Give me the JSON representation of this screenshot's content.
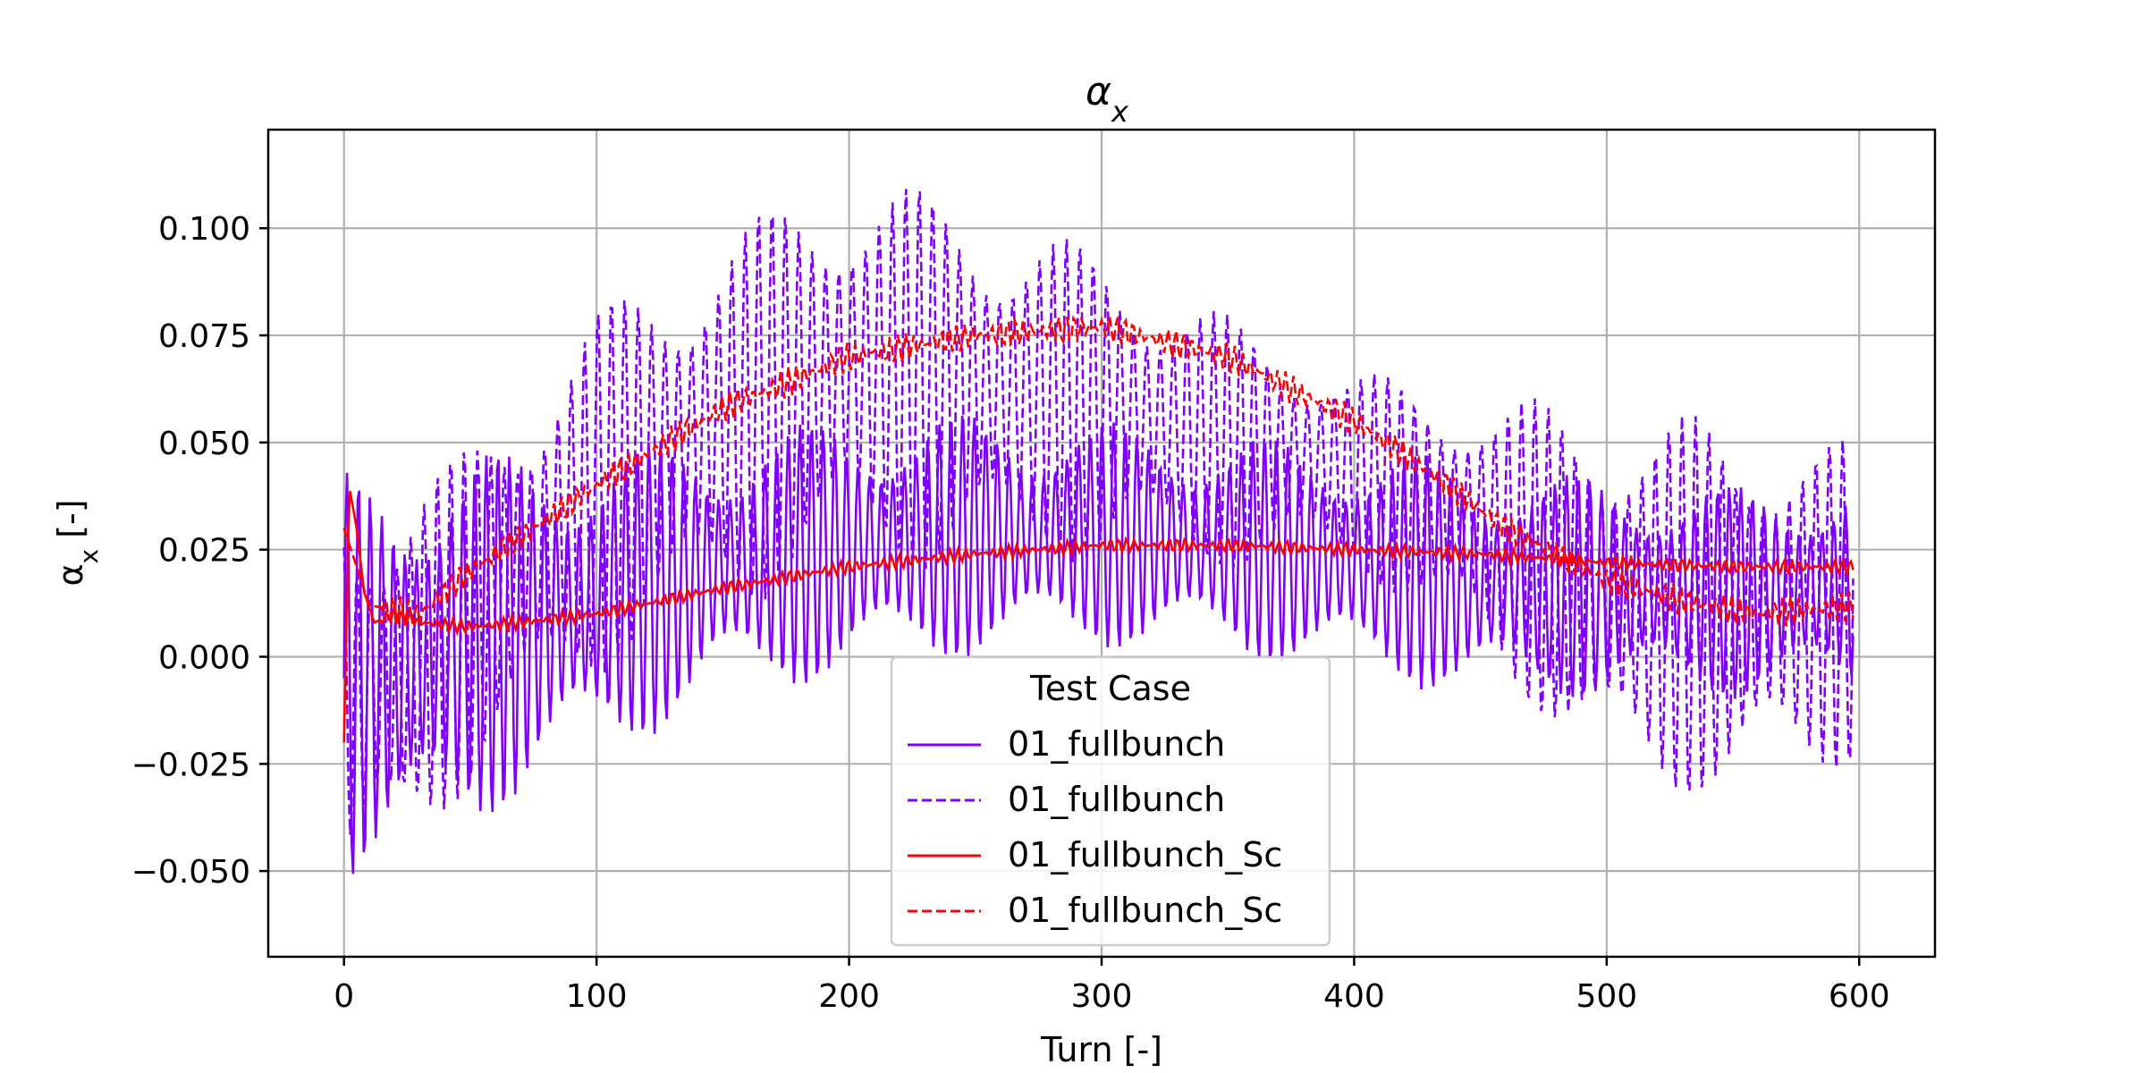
{
  "chart_data": {
    "type": "line",
    "title": "αx",
    "xlabel": "Turn [-]",
    "ylabel": "αx [-]",
    "xlim": [
      -30,
      630
    ],
    "ylim": [
      -0.07,
      0.123
    ],
    "x_ticks": [
      0,
      100,
      200,
      300,
      400,
      500,
      600
    ],
    "x_tick_labels": [
      "0",
      "100",
      "200",
      "300",
      "400",
      "500",
      "600"
    ],
    "y_ticks": [
      -0.05,
      -0.025,
      0.0,
      0.025,
      0.05,
      0.075,
      0.1
    ],
    "y_tick_labels": [
      "−0.050",
      "−0.025",
      "0.000",
      "0.025",
      "0.050",
      "0.075",
      "0.100"
    ],
    "grid": true,
    "legend": {
      "title": "Test Case",
      "placement": "lower-center"
    },
    "series": [
      {
        "name": "01_fullbunch",
        "style": "solid",
        "color": "#7f00ff",
        "description": "oscillating, upper envelope",
        "x": [
          0,
          20,
          50,
          100,
          150,
          200,
          250,
          300,
          350,
          400,
          450,
          500,
          550,
          600
        ],
        "upper": [
          0.043,
          0.045,
          0.048,
          0.05,
          0.052,
          0.056,
          0.057,
          0.055,
          0.052,
          0.05,
          0.045,
          0.042,
          0.04,
          0.042
        ],
        "lower": [
          -0.053,
          -0.05,
          -0.04,
          -0.025,
          -0.01,
          -0.005,
          0.0,
          0.002,
          0.0,
          -0.005,
          -0.01,
          -0.01,
          -0.01,
          -0.01
        ]
      },
      {
        "name": "01_fullbunch",
        "style": "dashed",
        "color": "#7f00ff",
        "x": [
          0,
          20,
          50,
          100,
          150,
          200,
          250,
          300,
          350,
          400,
          450,
          500,
          550,
          600
        ],
        "upper": [
          0.04,
          0.04,
          0.05,
          0.082,
          0.1,
          0.115,
          0.106,
          0.095,
          0.08,
          0.067,
          0.062,
          0.058,
          0.056,
          0.05
        ],
        "lower": [
          -0.06,
          -0.05,
          -0.03,
          -0.005,
          0.01,
          0.02,
          0.02,
          0.022,
          0.02,
          0.02,
          0.0,
          -0.03,
          -0.035,
          -0.025
        ]
      },
      {
        "name": "01_fullbunch_Sc",
        "style": "solid",
        "color": "#ff0000",
        "x": [
          0,
          2,
          5,
          8,
          12,
          20,
          30,
          50,
          70,
          100,
          150,
          200,
          250,
          300,
          350,
          400,
          450,
          500,
          550,
          600
        ],
        "y": [
          -0.02,
          0.04,
          0.03,
          0.015,
          0.008,
          0.01,
          0.008,
          0.007,
          0.008,
          0.01,
          0.016,
          0.021,
          0.024,
          0.026,
          0.026,
          0.025,
          0.024,
          0.022,
          0.021,
          0.021
        ]
      },
      {
        "name": "01_fullbunch_Sc",
        "style": "dashed",
        "color": "#ff0000",
        "x": [
          0,
          10,
          30,
          50,
          100,
          150,
          180,
          200,
          250,
          300,
          350,
          400,
          430,
          460,
          500,
          530,
          560,
          600
        ],
        "y": [
          0.03,
          0.012,
          0.01,
          0.02,
          0.04,
          0.058,
          0.065,
          0.07,
          0.075,
          0.077,
          0.07,
          0.055,
          0.043,
          0.03,
          0.018,
          0.013,
          0.01,
          0.012
        ]
      }
    ]
  }
}
